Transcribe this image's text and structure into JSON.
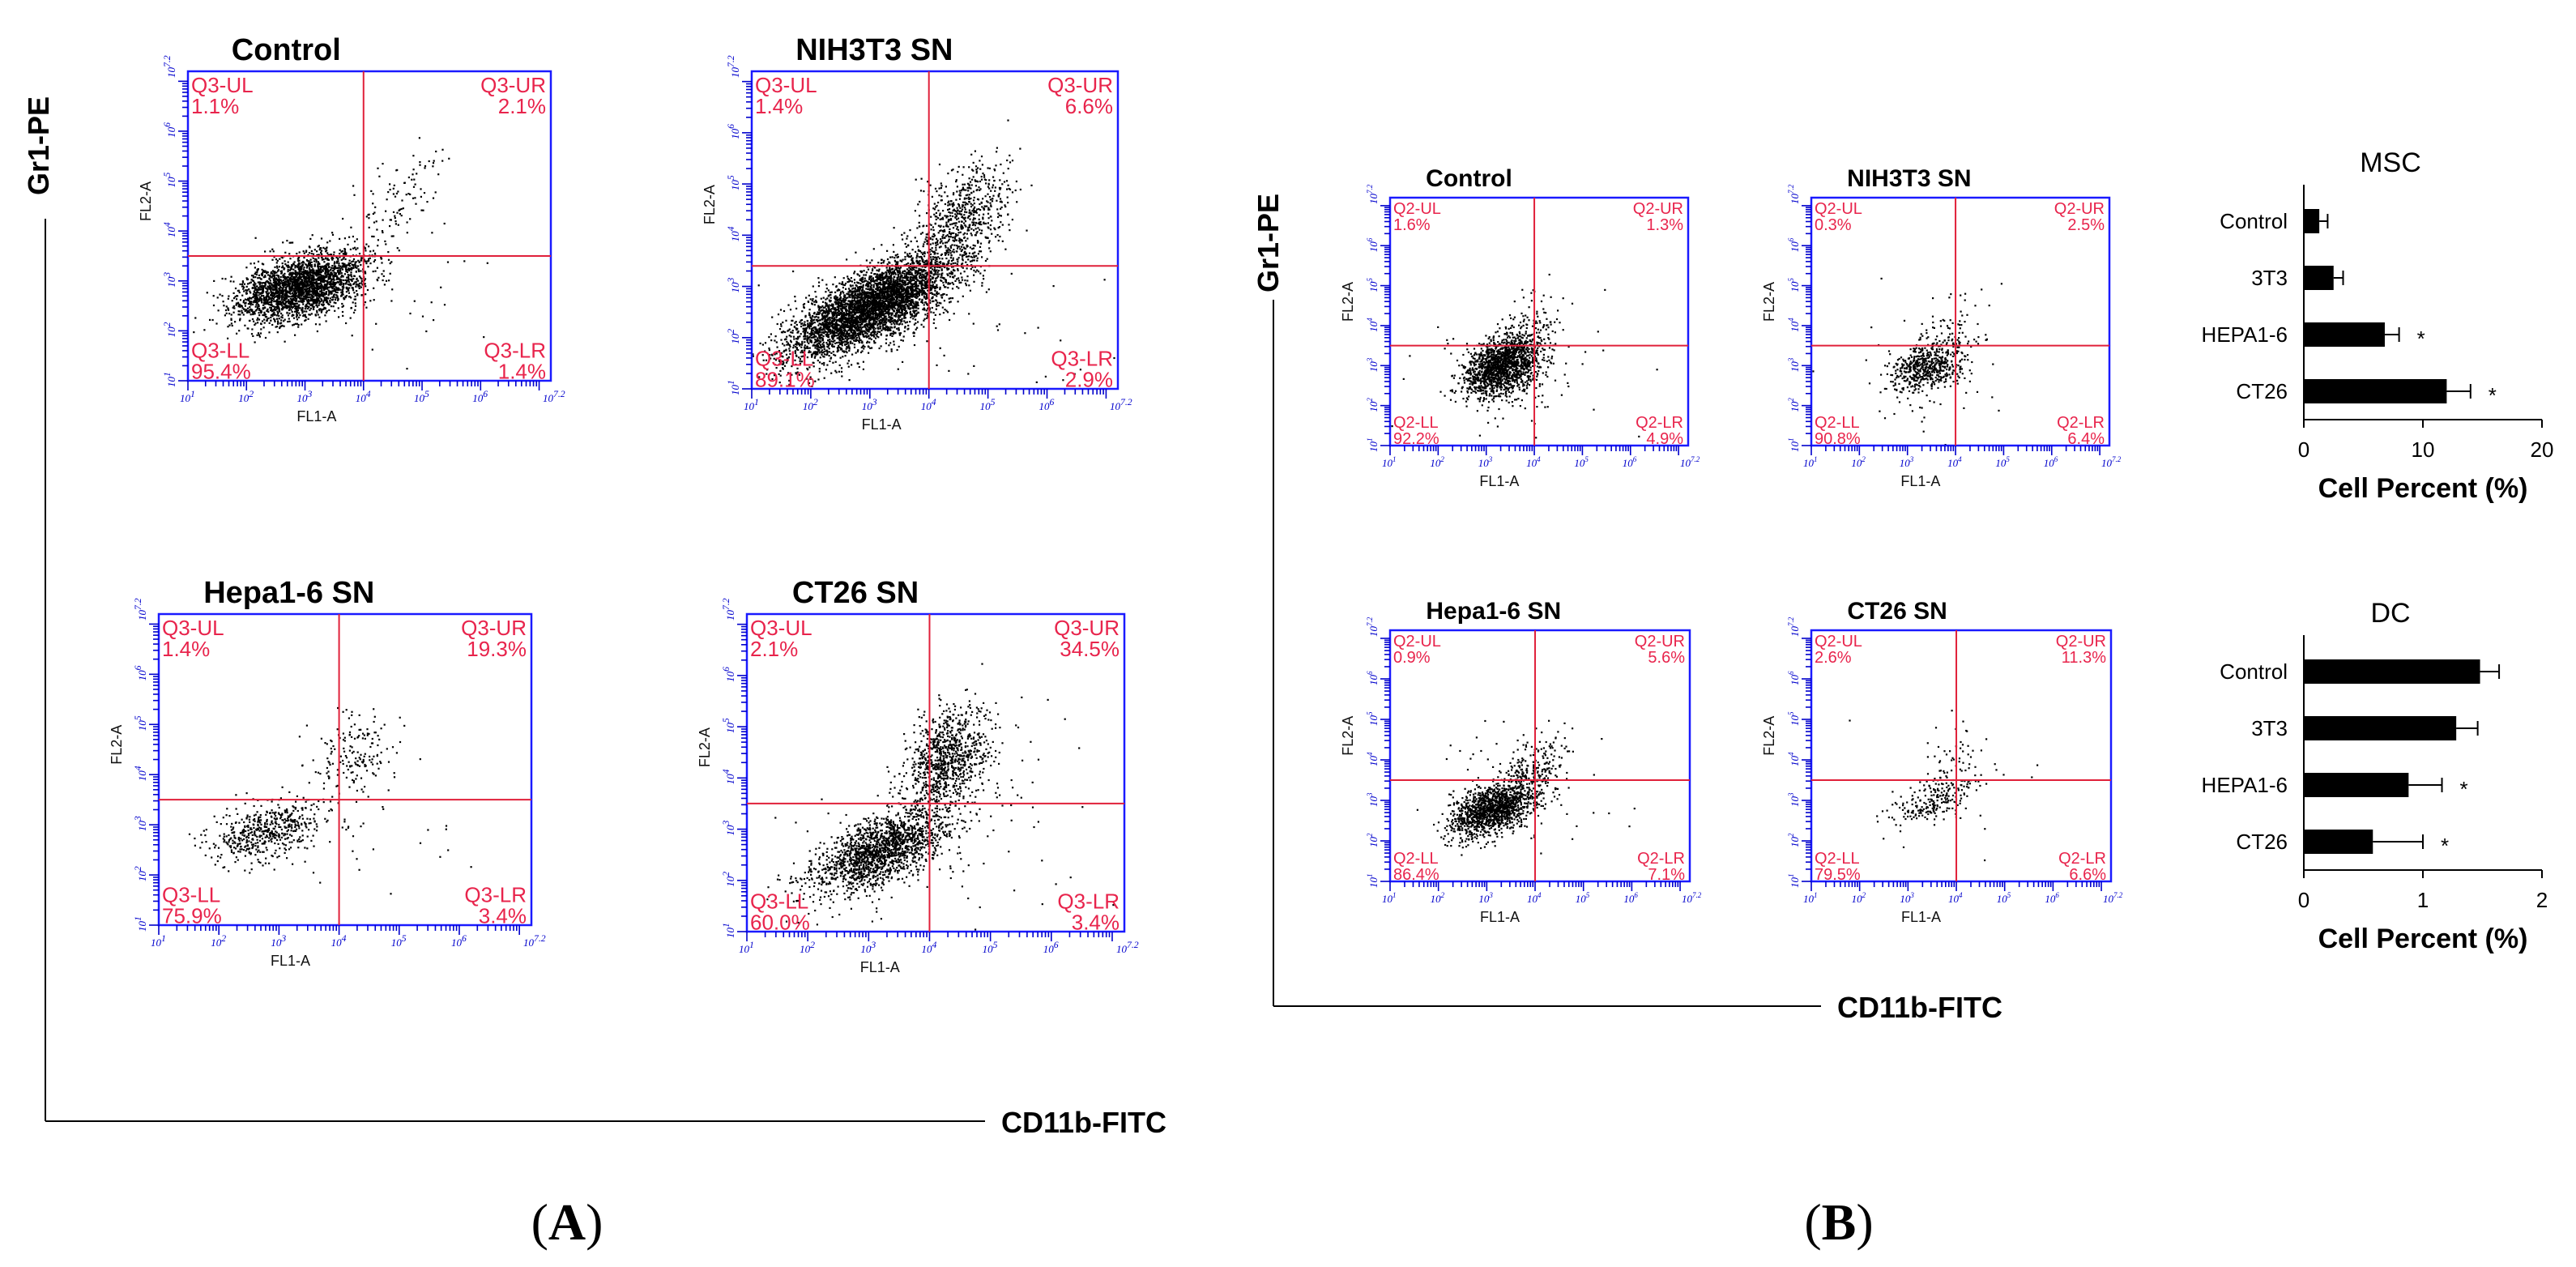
{
  "figure": {
    "panel_a": {
      "label_bold": "A",
      "open_paren": "(",
      "close_paren": ")",
      "y_axis": "Gr1-PE",
      "x_axis": "CD11b-FITC"
    },
    "panel_b": {
      "label_bold": "B",
      "open_paren": "(",
      "close_paren": ")",
      "y_axis": "Gr1-PE",
      "x_axis": "CD11b-FITC"
    }
  },
  "chart_data": [
    {
      "type": "scatter",
      "panel": "A",
      "title": "Control",
      "xlabel": "FL1-A",
      "ylabel": "FL2-A",
      "ticks": [
        "10^1",
        "10^2",
        "10^3",
        "10^4",
        "10^5",
        "10^6",
        "10^7.2"
      ],
      "tick_text": "10",
      "tick_exps": [
        "1",
        "2",
        "3",
        "4",
        "5",
        "6",
        "7.2"
      ],
      "gate": [
        4.0,
        3.5
      ],
      "quadrants": [
        {
          "name": "Q3-UL",
          "value": "1.1%"
        },
        {
          "name": "Q3-UR",
          "value": "2.1%"
        },
        {
          "name": "Q3-LL",
          "value": "95.4%"
        },
        {
          "name": "Q3-LR",
          "value": "1.4%"
        }
      ],
      "seed": 11,
      "populations": [
        {
          "n": 2600,
          "cx": 2.9,
          "cy": 2.9,
          "sx": 0.55,
          "sy": 0.35,
          "rho": 0.45
        },
        {
          "n": 110,
          "cx": 4.6,
          "cy": 4.6,
          "sx": 0.45,
          "sy": 0.55,
          "rho": 0.6
        },
        {
          "n": 40,
          "cx": 4.2,
          "cy": 2.6,
          "sx": 1.2,
          "sy": 0.6,
          "rho": 0.0
        }
      ]
    },
    {
      "type": "scatter",
      "panel": "A",
      "title": "NIH3T3  SN",
      "xlabel": "FL1-A",
      "ylabel": "FL2-A",
      "tick_text": "10",
      "tick_exps": [
        "1",
        "2",
        "3",
        "4",
        "5",
        "6",
        "7.2"
      ],
      "gate": [
        4.0,
        3.4
      ],
      "quadrants": [
        {
          "name": "Q3-UL",
          "value": "1.4%"
        },
        {
          "name": "Q3-UR",
          "value": "6.6%"
        },
        {
          "name": "Q3-LL",
          "value": "89.1%"
        },
        {
          "name": "Q3-LR",
          "value": "2.9%"
        }
      ],
      "seed": 23,
      "populations": [
        {
          "n": 4200,
          "cx": 3.0,
          "cy": 2.6,
          "sx": 0.7,
          "sy": 0.5,
          "rho": 0.72
        },
        {
          "n": 700,
          "cx": 4.5,
          "cy": 4.3,
          "sx": 0.45,
          "sy": 0.6,
          "rho": 0.55
        },
        {
          "n": 60,
          "cx": 4.0,
          "cy": 2.0,
          "sx": 1.5,
          "sy": 0.8,
          "rho": 0.0
        }
      ]
    },
    {
      "type": "scatter",
      "panel": "A",
      "title": "Hepa1-6 SN",
      "xlabel": "FL1-A",
      "ylabel": "FL2-A",
      "tick_text": "10",
      "tick_exps": [
        "1",
        "2",
        "3",
        "4",
        "5",
        "6",
        "7.2"
      ],
      "gate": [
        4.0,
        3.5
      ],
      "quadrants": [
        {
          "name": "Q3-UL",
          "value": "1.4%"
        },
        {
          "name": "Q3-UR",
          "value": "19.3%"
        },
        {
          "name": "Q3-LL",
          "value": "75.9%"
        },
        {
          "name": "Q3-LR",
          "value": "3.4%"
        }
      ],
      "seed": 37,
      "populations": [
        {
          "n": 520,
          "cx": 2.8,
          "cy": 2.9,
          "sx": 0.45,
          "sy": 0.3,
          "rho": 0.4
        },
        {
          "n": 170,
          "cx": 4.2,
          "cy": 4.4,
          "sx": 0.35,
          "sy": 0.45,
          "rho": 0.3
        },
        {
          "n": 30,
          "cx": 4.0,
          "cy": 3.0,
          "sx": 1.0,
          "sy": 0.8,
          "rho": 0.0
        }
      ]
    },
    {
      "type": "scatter",
      "panel": "A",
      "title": "CT26  SN",
      "xlabel": "FL1-A",
      "ylabel": "FL2-A",
      "tick_text": "10",
      "tick_exps": [
        "1",
        "2",
        "3",
        "4",
        "5",
        "6",
        "7.2"
      ],
      "gate": [
        4.0,
        3.5
      ],
      "quadrants": [
        {
          "name": "Q3-UL",
          "value": "2.1%"
        },
        {
          "name": "Q3-UR",
          "value": "34.5%"
        },
        {
          "name": "Q3-LL",
          "value": "60.0%"
        },
        {
          "name": "Q3-LR",
          "value": "3.4%"
        }
      ],
      "seed": 53,
      "populations": [
        {
          "n": 1700,
          "cx": 3.2,
          "cy": 2.6,
          "sx": 0.55,
          "sy": 0.4,
          "rho": 0.6
        },
        {
          "n": 900,
          "cx": 4.3,
          "cy": 4.4,
          "sx": 0.35,
          "sy": 0.5,
          "rho": 0.3
        },
        {
          "n": 90,
          "cx": 4.2,
          "cy": 3.2,
          "sx": 1.2,
          "sy": 1.0,
          "rho": 0.2
        }
      ]
    },
    {
      "type": "scatter",
      "panel": "B",
      "title": "Control",
      "xlabel": "FL1-A",
      "ylabel": "FL2-A",
      "tick_text": "10",
      "tick_exps": [
        "1",
        "2",
        "3",
        "4",
        "5",
        "6",
        "7.2"
      ],
      "gate": [
        4.0,
        3.5
      ],
      "quadrants": [
        {
          "name": "Q2-UL",
          "value": "1.6%"
        },
        {
          "name": "Q2-UR",
          "value": "1.3%"
        },
        {
          "name": "Q2-LL",
          "value": "92.2%"
        },
        {
          "name": "Q2-LR",
          "value": "4.9%"
        }
      ],
      "seed": 61,
      "populations": [
        {
          "n": 1500,
          "cx": 3.3,
          "cy": 3.0,
          "sx": 0.4,
          "sy": 0.4,
          "rho": 0.4
        },
        {
          "n": 150,
          "cx": 3.9,
          "cy": 3.4,
          "sx": 0.3,
          "sy": 0.7,
          "rho": 0.3
        },
        {
          "n": 60,
          "cx": 3.5,
          "cy": 3.0,
          "sx": 1.2,
          "sy": 1.0,
          "rho": 0.0
        }
      ]
    },
    {
      "type": "scatter",
      "panel": "B",
      "title": "NIH3T3  SN",
      "xlabel": "FL1-A",
      "ylabel": "FL2-A",
      "tick_text": "10",
      "tick_exps": [
        "1",
        "2",
        "3",
        "4",
        "5",
        "6",
        "7.2"
      ],
      "gate": [
        4.0,
        3.5
      ],
      "quadrants": [
        {
          "name": "Q2-UL",
          "value": "0.3%"
        },
        {
          "name": "Q2-UR",
          "value": "2.5%"
        },
        {
          "name": "Q2-LL",
          "value": "90.8%"
        },
        {
          "name": "Q2-LR",
          "value": "6.4%"
        }
      ],
      "seed": 71,
      "populations": [
        {
          "n": 550,
          "cx": 3.4,
          "cy": 3.0,
          "sx": 0.4,
          "sy": 0.35,
          "rho": 0.4
        },
        {
          "n": 60,
          "cx": 4.0,
          "cy": 3.7,
          "sx": 0.3,
          "sy": 0.6,
          "rho": 0.2
        },
        {
          "n": 40,
          "cx": 3.8,
          "cy": 3.0,
          "sx": 1.0,
          "sy": 1.0,
          "rho": 0.0
        }
      ]
    },
    {
      "type": "scatter",
      "panel": "B",
      "title": "Hepa1-6  SN",
      "xlabel": "FL1-A",
      "ylabel": "FL2-A",
      "tick_text": "10",
      "tick_exps": [
        "1",
        "2",
        "3",
        "4",
        "5",
        "6",
        "7.2"
      ],
      "gate": [
        4.0,
        3.5
      ],
      "quadrants": [
        {
          "name": "Q2-UL",
          "value": "0.9%"
        },
        {
          "name": "Q2-UR",
          "value": "5.6%"
        },
        {
          "name": "Q2-LL",
          "value": "86.4%"
        },
        {
          "name": "Q2-LR",
          "value": "7.1%"
        }
      ],
      "seed": 83,
      "populations": [
        {
          "n": 1300,
          "cx": 3.1,
          "cy": 2.8,
          "sx": 0.45,
          "sy": 0.35,
          "rho": 0.5
        },
        {
          "n": 220,
          "cx": 3.9,
          "cy": 3.7,
          "sx": 0.35,
          "sy": 0.5,
          "rho": 0.5
        },
        {
          "n": 60,
          "cx": 3.8,
          "cy": 3.3,
          "sx": 1.0,
          "sy": 1.0,
          "rho": 0.0
        }
      ]
    },
    {
      "type": "scatter",
      "panel": "B",
      "title": "CT26  SN",
      "xlabel": "FL1-A",
      "ylabel": "FL2-A",
      "tick_text": "10",
      "tick_exps": [
        "1",
        "2",
        "3",
        "4",
        "5",
        "6",
        "7.2"
      ],
      "gate": [
        4.0,
        3.5
      ],
      "quadrants": [
        {
          "name": "Q2-UL",
          "value": "2.6%"
        },
        {
          "name": "Q2-UR",
          "value": "11.3%"
        },
        {
          "name": "Q2-LL",
          "value": "79.5%"
        },
        {
          "name": "Q2-LR",
          "value": "6.6%"
        }
      ],
      "seed": 97,
      "populations": [
        {
          "n": 220,
          "cx": 3.5,
          "cy": 3.0,
          "sx": 0.45,
          "sy": 0.3,
          "rho": 0.5
        },
        {
          "n": 50,
          "cx": 4.0,
          "cy": 3.9,
          "sx": 0.25,
          "sy": 0.45,
          "rho": 0.2
        },
        {
          "n": 20,
          "cx": 3.6,
          "cy": 3.2,
          "sx": 1.0,
          "sy": 1.0,
          "rho": 0.0
        }
      ]
    },
    {
      "type": "bar",
      "orientation": "horizontal",
      "panel": "B",
      "title": "MSC",
      "categories": [
        "Control",
        "3T3",
        "HEPA1-6",
        "CT26"
      ],
      "values": [
        1.3,
        2.5,
        6.8,
        12.0
      ],
      "errors": [
        0.7,
        0.8,
        1.2,
        2.0
      ],
      "significant": [
        false,
        false,
        true,
        true
      ],
      "sig_marker": "*",
      "xlabel": "Cell Percent (%)",
      "xlim": [
        0,
        20
      ],
      "xticks": [
        "0",
        "10",
        "20"
      ]
    },
    {
      "type": "bar",
      "orientation": "horizontal",
      "panel": "B",
      "title": "DC",
      "categories": [
        "Control",
        "3T3",
        "HEPA1-6",
        "CT26"
      ],
      "values": [
        1.48,
        1.28,
        0.88,
        0.58
      ],
      "errors": [
        0.16,
        0.18,
        0.28,
        0.42
      ],
      "significant": [
        false,
        false,
        true,
        true
      ],
      "sig_marker": "*",
      "xlabel": "Cell Percent (%)",
      "xlim": [
        0,
        2
      ],
      "xticks": [
        "0",
        "1",
        "2"
      ]
    }
  ]
}
